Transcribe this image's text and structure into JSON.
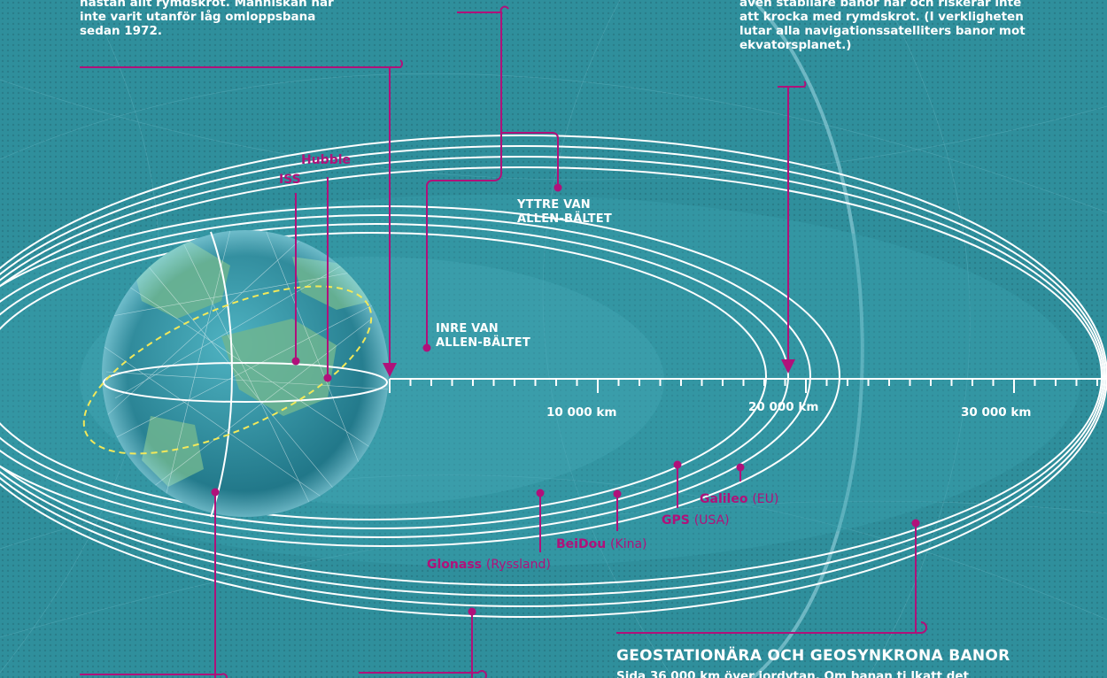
{
  "notes": {
    "left_line1": "nästan allt rymdskrot. Människan har",
    "left_line2": "inte varit utanför låg omloppsbana",
    "left_line3": "sedan 1972.",
    "right_line1": "även stabilare banor här och riskerar inte",
    "right_line2": "att krocka med rymdskrot. (I verkligheten",
    "right_line3": "lutar alla navigationssatelliters banor mot",
    "right_line4": "ekvatorsplanet.)"
  },
  "belts": {
    "outer_line1": "YTTRE VAN",
    "outer_line2": "ALLEN-BÄLTET",
    "inner_line1": "INRE VAN",
    "inner_line2": "ALLEN-BÄLTET"
  },
  "satellites": {
    "iss": "ISS",
    "hubble": "Hubble"
  },
  "navigation": {
    "galileo": "Galileo",
    "galileo_owner": "(EU)",
    "gps": "GPS",
    "gps_owner": "(USA)",
    "beidou": "BeiDou",
    "beidou_owner": "(Kina)",
    "glonass": "Glonass",
    "glonass_owner": "(Ryssland)"
  },
  "scale": {
    "tick_10k": "10 000 km",
    "tick_20k": "20 000 km",
    "tick_30k": "30 000 km"
  },
  "bottom": {
    "heading": "GEOSTATIONÄRA OCH GEOSYNKRONA BANOR",
    "cut_text": "Sida 36 000 km över jordytan. Om banan ti lkatt det"
  },
  "colors": {
    "background": "#2f8f9c",
    "accent": "#b0117a",
    "orbit": "#ffffff",
    "earth_land": "#6fb590",
    "earth_sea": "#1c6f84",
    "dashed_orbit": "#f2e85a"
  }
}
